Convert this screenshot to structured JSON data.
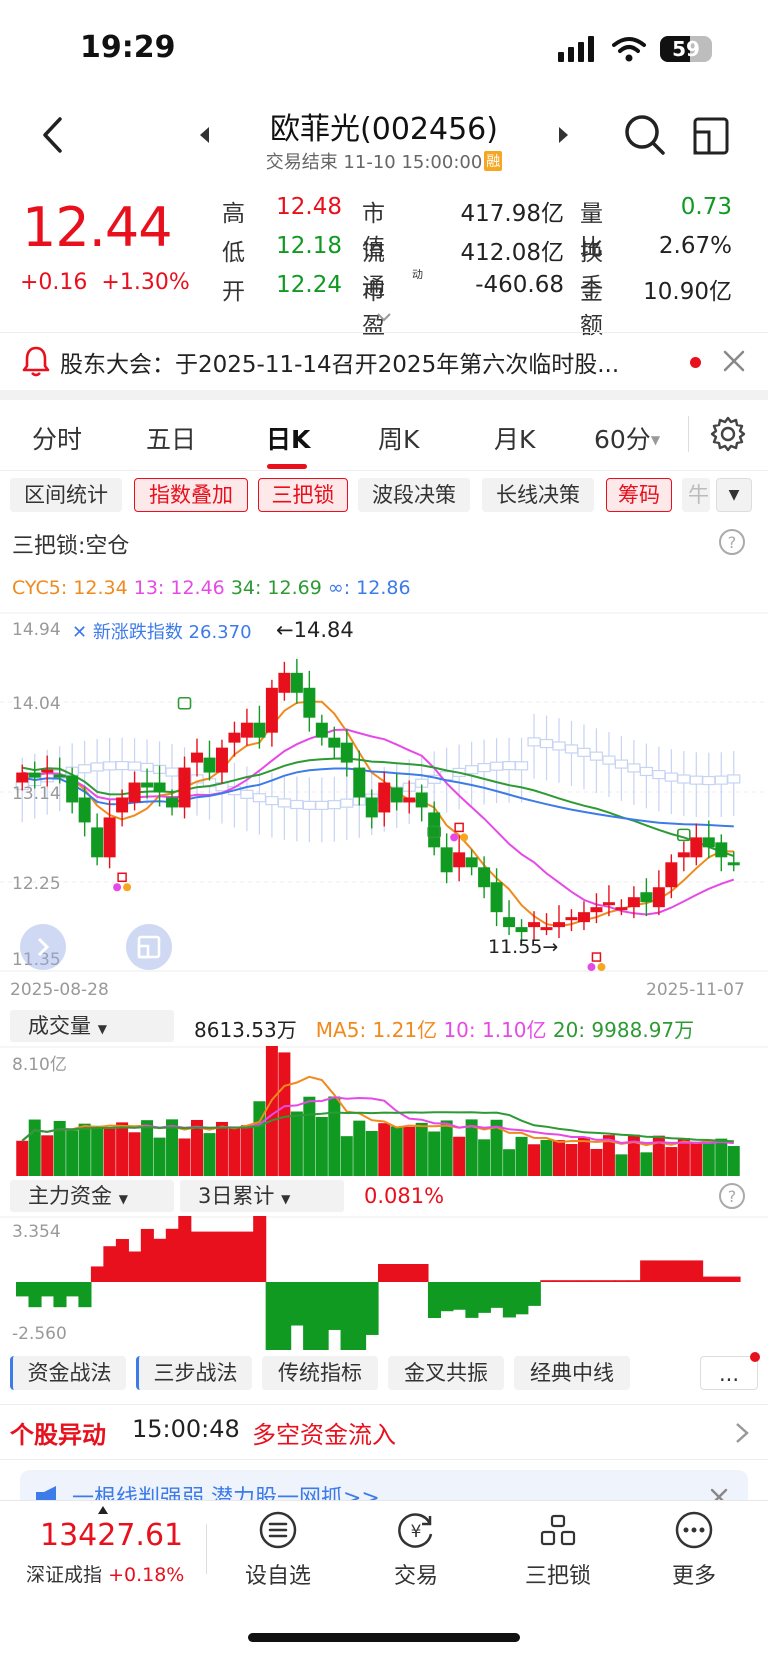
{
  "status_bar": {
    "time": "19:29",
    "battery": "59"
  },
  "header": {
    "title": "欧菲光(002456)",
    "subtitle": "交易结束 11-10 15:00:00",
    "margin_badge": "融"
  },
  "quote": {
    "price": "12.44",
    "change": "+0.16",
    "change_pct": "+1.30%",
    "rows": [
      {
        "l1": "高",
        "v1": "12.48",
        "c1": "#e8101c",
        "l2": "市值",
        "v2": "417.98亿",
        "l3": "量比",
        "v3": "0.73",
        "c3": "#109a22"
      },
      {
        "l1": "低",
        "v1": "12.18",
        "c1": "#109a22",
        "l2": "流通",
        "v2": "412.08亿",
        "l3": "换手",
        "v3": "2.67%",
        "c3": "#222"
      },
      {
        "l1": "开",
        "v1": "12.24",
        "c1": "#109a22",
        "l2": "市盈",
        "v2": "-460.68",
        "l3": "金额",
        "v3": "10.90亿",
        "c3": "#222"
      }
    ],
    "pe_superscript": "动"
  },
  "notice": {
    "text": "股东大会：于2025-11-14召开2025年第六次临时股..."
  },
  "tabs": [
    "分时",
    "五日",
    "日K",
    "周K",
    "月K",
    "60分"
  ],
  "active_tab": "日K",
  "chips": [
    "区间统计",
    "指数叠加",
    "三把锁",
    "波段决策",
    "长线决策",
    "筹码",
    "牛"
  ],
  "sanbasuo": "三把锁:空仓",
  "cyc": {
    "cyc5": "CYC5: 12.34",
    "c13": "13: 12.46",
    "c34": "34: 12.69",
    "cinf": "∞: 12.86"
  },
  "kline": {
    "y_ticks": [
      "14.94",
      "14.04",
      "13.14",
      "12.25",
      "11.35"
    ],
    "overlay_label": "新涨跌指数 26.370",
    "high_marker": "←14.84",
    "low_marker": "11.55→",
    "start_date": "2025-08-28",
    "end_date": "2025-11-07"
  },
  "volume": {
    "selector": "成交量",
    "value": "8613.53万",
    "ma5": "MA5: 1.21亿",
    "ma10": "10: 1.10亿",
    "ma20": "20: 9988.97万",
    "y_top": "8.10亿"
  },
  "capital": {
    "selector": "主力资金",
    "range": "3日累计",
    "value": "0.081%",
    "y_top": "3.354",
    "y_bottom": "-2.560"
  },
  "func_chips": [
    "资金战法",
    "三步战法",
    "传统指标",
    "金叉共振",
    "经典中线",
    "..."
  ],
  "alert": {
    "title": "个股异动",
    "time": "15:00:48",
    "text": "多空资金流入"
  },
  "ad": {
    "text": "一根线判强弱 潜力股一网抓>>"
  },
  "bottom": {
    "index_value": "13427.61",
    "index_name": "深证成指",
    "index_change": "+0.18%",
    "nav": [
      "设自选",
      "交易",
      "三把锁",
      "更多"
    ]
  },
  "colors": {
    "up": "#e8101c",
    "down": "#109a22",
    "accent": "#3d7be8",
    "cyc5": "#f08a1c",
    "c13": "#e64ae6",
    "c34": "#2e9a34"
  }
}
